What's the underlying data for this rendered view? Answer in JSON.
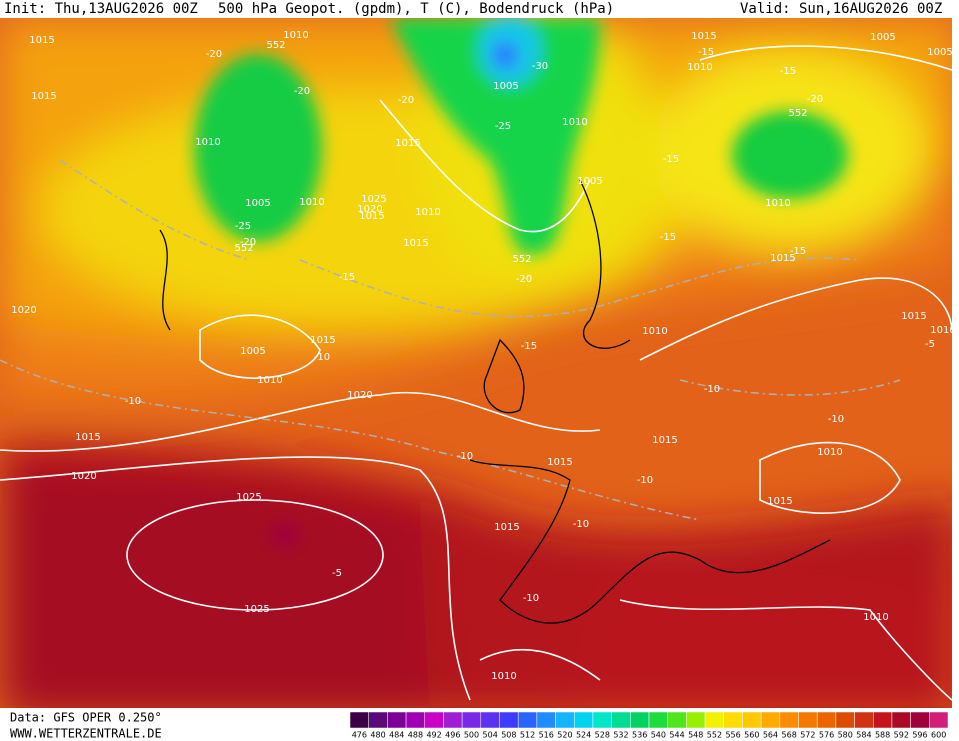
{
  "header": {
    "init": "Init: Thu,13AUG2026 00Z",
    "title": "500 hPa Geopot. (gpdm), T (C), Bodendruck (hPa)",
    "valid": "Valid: Sun,16AUG2026 00Z"
  },
  "footer": {
    "data": "Data: GFS OPER 0.250°",
    "site": "WWW.WETTERZENTRALE.DE"
  },
  "legend": {
    "levels": [
      476,
      480,
      484,
      488,
      492,
      496,
      500,
      504,
      508,
      512,
      516,
      520,
      524,
      528,
      532,
      536,
      540,
      544,
      548,
      552,
      556,
      560,
      564,
      568,
      572,
      576,
      580,
      584,
      588,
      592,
      596,
      600
    ],
    "colors": [
      "#3c0046",
      "#5a0a78",
      "#7d0096",
      "#a000b4",
      "#c800c8",
      "#a01ed2",
      "#7828e6",
      "#5a32f0",
      "#3c3cff",
      "#2864ff",
      "#1e8cff",
      "#14b4ff",
      "#00d2f0",
      "#00e6c8",
      "#00dc96",
      "#00d264",
      "#1edc3c",
      "#50e61e",
      "#96f000",
      "#f0f000",
      "#ffdc00",
      "#ffc800",
      "#ffaa00",
      "#ff8c00",
      "#f57800",
      "#eb6400",
      "#dc4b00",
      "#d23214",
      "#c3141e",
      "#aa0a28",
      "#a0003c",
      "#d21e78"
    ]
  },
  "map": {
    "pressure_labels": [
      "1015",
      "1010",
      "1005",
      "1010",
      "1015",
      "1010",
      "1005",
      "1005",
      "1015",
      "1010",
      "1005",
      "1010",
      "1015",
      "1025",
      "1020",
      "1015",
      "1010",
      "1005",
      "1015",
      "1010",
      "1015",
      "1020",
      "1015",
      "1005",
      "1010",
      "1010",
      "1015",
      "1020",
      "1015",
      "1015",
      "1015",
      "1010",
      "1020",
      "1015",
      "1025",
      "1015",
      "1025",
      "1010",
      "1010",
      "1010"
    ],
    "temperature_labels": [
      "-20",
      "-20",
      "-20",
      "-30",
      "-25",
      "-15",
      "-15",
      "-20",
      "-15",
      "-25",
      "-20",
      "-15",
      "-15",
      "-20",
      "-15",
      "-15",
      "-10",
      "-10",
      "-10",
      "-10",
      "-10",
      "-10",
      "-10",
      "-5",
      "-10",
      "-5"
    ],
    "geopotential_labels": [
      "552",
      "552",
      "552",
      "552"
    ]
  }
}
